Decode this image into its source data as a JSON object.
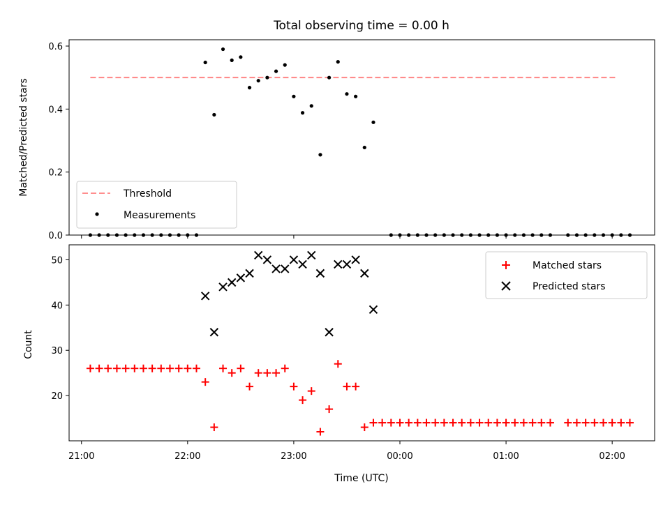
{
  "chart_data": [
    {
      "type": "scatter",
      "title": "Total observing time = 0.00 h",
      "xlabel": "",
      "ylabel": "Matched/Predicted stars",
      "ylim": [
        0,
        0.62
      ],
      "yticks": [
        0.0,
        0.2,
        0.4,
        0.6
      ],
      "ytick_labels": [
        "0.0",
        "0.2",
        "0.4",
        "0.6"
      ],
      "xlim": [
        "20:53",
        "02:24"
      ],
      "xticks": [
        "21:00",
        "22:00",
        "23:00",
        "00:00",
        "01:00",
        "02:00"
      ],
      "grid": false,
      "legend": "lower-left",
      "threshold": {
        "name": "Threshold",
        "value": 0.5,
        "x_range": [
          "21:05",
          "02:02"
        ],
        "color": "#ff7f7f"
      },
      "series": [
        {
          "name": "Measurements",
          "color": "#000000",
          "points": [
            [
              "21:05",
              0.0
            ],
            [
              "21:10",
              0.0
            ],
            [
              "21:15",
              0.0
            ],
            [
              "21:20",
              0.0
            ],
            [
              "21:25",
              0.0
            ],
            [
              "21:30",
              0.0
            ],
            [
              "21:35",
              0.0
            ],
            [
              "21:40",
              0.0
            ],
            [
              "21:45",
              0.0
            ],
            [
              "21:50",
              0.0
            ],
            [
              "21:55",
              0.0
            ],
            [
              "22:00",
              0.0
            ],
            [
              "22:05",
              0.0
            ],
            [
              "22:10",
              0.548
            ],
            [
              "22:15",
              0.382
            ],
            [
              "22:20",
              0.59
            ],
            [
              "22:25",
              0.555
            ],
            [
              "22:30",
              0.565
            ],
            [
              "22:35",
              0.468
            ],
            [
              "22:40",
              0.49
            ],
            [
              "22:45",
              0.5
            ],
            [
              "22:50",
              0.52
            ],
            [
              "22:55",
              0.54
            ],
            [
              "23:00",
              0.44
            ],
            [
              "23:05",
              0.388
            ],
            [
              "23:10",
              0.41
            ],
            [
              "23:15",
              0.255
            ],
            [
              "23:20",
              0.5
            ],
            [
              "23:25",
              0.55
            ],
            [
              "23:30",
              0.448
            ],
            [
              "23:35",
              0.44
            ],
            [
              "23:40",
              0.278
            ],
            [
              "23:45",
              0.358
            ],
            [
              "23:55",
              0.0
            ],
            [
              "00:00",
              0.0
            ],
            [
              "00:05",
              0.0
            ],
            [
              "00:10",
              0.0
            ],
            [
              "00:15",
              0.0
            ],
            [
              "00:20",
              0.0
            ],
            [
              "00:25",
              0.0
            ],
            [
              "00:30",
              0.0
            ],
            [
              "00:35",
              0.0
            ],
            [
              "00:40",
              0.0
            ],
            [
              "00:45",
              0.0
            ],
            [
              "00:50",
              0.0
            ],
            [
              "00:55",
              0.0
            ],
            [
              "01:00",
              0.0
            ],
            [
              "01:05",
              0.0
            ],
            [
              "01:10",
              0.0
            ],
            [
              "01:15",
              0.0
            ],
            [
              "01:20",
              0.0
            ],
            [
              "01:25",
              0.0
            ],
            [
              "01:35",
              0.0
            ],
            [
              "01:40",
              0.0
            ],
            [
              "01:45",
              0.0
            ],
            [
              "01:50",
              0.0
            ],
            [
              "01:55",
              0.0
            ],
            [
              "02:00",
              0.0
            ],
            [
              "02:05",
              0.0
            ],
            [
              "02:10",
              0.0
            ]
          ]
        }
      ]
    },
    {
      "type": "scatter",
      "title": "",
      "xlabel": "Time (UTC)",
      "ylabel": "Count",
      "ylim": [
        10,
        53.3
      ],
      "yticks": [
        20,
        30,
        40,
        50
      ],
      "ytick_labels": [
        "20",
        "30",
        "40",
        "50"
      ],
      "xlim": [
        "20:53",
        "02:24"
      ],
      "xticks": [
        "21:00",
        "22:00",
        "23:00",
        "00:00",
        "01:00",
        "02:00"
      ],
      "xtick_labels": [
        "21:00",
        "22:00",
        "23:00",
        "00:00",
        "01:00",
        "02:00"
      ],
      "grid": false,
      "legend": "upper-right",
      "series": [
        {
          "name": "Matched stars",
          "marker": "plus",
          "color": "#ff0000",
          "points": [
            [
              "21:05",
              26
            ],
            [
              "21:10",
              26
            ],
            [
              "21:15",
              26
            ],
            [
              "21:20",
              26
            ],
            [
              "21:25",
              26
            ],
            [
              "21:30",
              26
            ],
            [
              "21:35",
              26
            ],
            [
              "21:40",
              26
            ],
            [
              "21:45",
              26
            ],
            [
              "21:50",
              26
            ],
            [
              "21:55",
              26
            ],
            [
              "22:00",
              26
            ],
            [
              "22:05",
              26
            ],
            [
              "22:10",
              23
            ],
            [
              "22:15",
              13
            ],
            [
              "22:20",
              26
            ],
            [
              "22:25",
              25
            ],
            [
              "22:30",
              26
            ],
            [
              "22:35",
              22
            ],
            [
              "22:40",
              25
            ],
            [
              "22:45",
              25
            ],
            [
              "22:50",
              25
            ],
            [
              "22:55",
              26
            ],
            [
              "23:00",
              22
            ],
            [
              "23:05",
              19
            ],
            [
              "23:10",
              21
            ],
            [
              "23:15",
              12
            ],
            [
              "23:20",
              17
            ],
            [
              "23:25",
              27
            ],
            [
              "23:30",
              22
            ],
            [
              "23:35",
              22
            ],
            [
              "23:40",
              13
            ],
            [
              "23:45",
              14
            ],
            [
              "23:50",
              14
            ],
            [
              "23:55",
              14
            ],
            [
              "00:00",
              14
            ],
            [
              "00:05",
              14
            ],
            [
              "00:10",
              14
            ],
            [
              "00:15",
              14
            ],
            [
              "00:20",
              14
            ],
            [
              "00:25",
              14
            ],
            [
              "00:30",
              14
            ],
            [
              "00:35",
              14
            ],
            [
              "00:40",
              14
            ],
            [
              "00:45",
              14
            ],
            [
              "00:50",
              14
            ],
            [
              "00:55",
              14
            ],
            [
              "01:00",
              14
            ],
            [
              "01:05",
              14
            ],
            [
              "01:10",
              14
            ],
            [
              "01:15",
              14
            ],
            [
              "01:20",
              14
            ],
            [
              "01:25",
              14
            ],
            [
              "01:35",
              14
            ],
            [
              "01:40",
              14
            ],
            [
              "01:45",
              14
            ],
            [
              "01:50",
              14
            ],
            [
              "01:55",
              14
            ],
            [
              "02:00",
              14
            ],
            [
              "02:05",
              14
            ],
            [
              "02:10",
              14
            ]
          ]
        },
        {
          "name": "Predicted stars",
          "marker": "x",
          "color": "#000000",
          "points": [
            [
              "22:10",
              42
            ],
            [
              "22:15",
              34
            ],
            [
              "22:20",
              44
            ],
            [
              "22:25",
              45
            ],
            [
              "22:30",
              46
            ],
            [
              "22:35",
              47
            ],
            [
              "22:40",
              51
            ],
            [
              "22:45",
              50
            ],
            [
              "22:50",
              48
            ],
            [
              "22:55",
              48
            ],
            [
              "23:00",
              50
            ],
            [
              "23:05",
              49
            ],
            [
              "23:10",
              51
            ],
            [
              "23:15",
              47
            ],
            [
              "23:20",
              34
            ],
            [
              "23:25",
              49
            ],
            [
              "23:30",
              49
            ],
            [
              "23:35",
              50
            ],
            [
              "23:40",
              47
            ],
            [
              "23:45",
              39
            ]
          ]
        }
      ]
    }
  ]
}
